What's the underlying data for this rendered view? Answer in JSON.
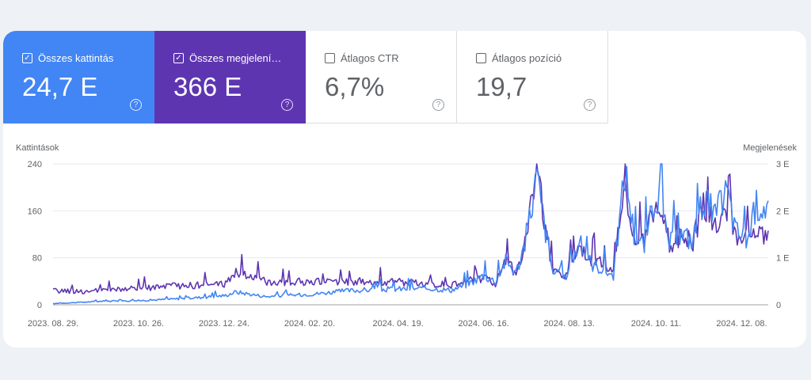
{
  "metrics": [
    {
      "label": "Összes kattintás",
      "value": "24,7 E",
      "checked": true,
      "help": "?"
    },
    {
      "label": "Összes megjelení…",
      "value": "366 E",
      "checked": true,
      "help": "?"
    },
    {
      "label": "Átlagos CTR",
      "value": "6,7%",
      "checked": false,
      "help": "?"
    },
    {
      "label": "Átlagos pozíció",
      "value": "19,7",
      "checked": false,
      "help": "?"
    }
  ],
  "colors": {
    "clicks": "#4285f4",
    "impressions": "#5e35b1"
  },
  "chart_data": {
    "type": "line",
    "ylabel": "Kattintások",
    "y2label": "Megjelenések",
    "y_ticks": [
      "0",
      "80",
      "160",
      "240"
    ],
    "y2_ticks": [
      "0",
      "1 E",
      "2 E",
      "3 E"
    ],
    "ylim": [
      0,
      240
    ],
    "y2lim": [
      0,
      3000
    ],
    "x_ticks": [
      "2023. 08. 29.",
      "2023. 10. 26.",
      "2023. 12. 24.",
      "2024. 02. 20.",
      "2024. 04. 19.",
      "2024. 06. 16.",
      "2024. 08. 13.",
      "2024. 10. 11.",
      "2024. 12. 08."
    ],
    "x_range": [
      "2023-08-29",
      "2024-12-26"
    ],
    "grid": true,
    "series": [
      {
        "axis": "left",
        "color": "#4285f4",
        "points": [
          [
            "2023-08-29",
            2
          ],
          [
            "2023-09-15",
            4
          ],
          [
            "2023-10-01",
            6
          ],
          [
            "2023-10-26",
            7
          ],
          [
            "2023-11-20",
            10
          ],
          [
            "2023-12-10",
            13
          ],
          [
            "2023-12-24",
            16
          ],
          [
            "2023-12-31",
            22
          ],
          [
            "2024-01-20",
            14
          ],
          [
            "2024-02-20",
            18
          ],
          [
            "2024-03-15",
            24
          ],
          [
            "2024-04-19",
            27
          ],
          [
            "2024-05-10",
            28
          ],
          [
            "2024-05-25",
            25
          ],
          [
            "2024-06-05",
            35
          ],
          [
            "2024-06-16",
            50
          ],
          [
            "2024-06-24",
            40
          ],
          [
            "2024-07-01",
            75
          ],
          [
            "2024-07-08",
            55
          ],
          [
            "2024-07-14",
            105
          ],
          [
            "2024-07-22",
            220
          ],
          [
            "2024-07-27",
            140
          ],
          [
            "2024-08-02",
            55
          ],
          [
            "2024-08-10",
            45
          ],
          [
            "2024-08-20",
            105
          ],
          [
            "2024-08-28",
            70
          ],
          [
            "2024-09-05",
            60
          ],
          [
            "2024-09-12",
            50
          ],
          [
            "2024-09-20",
            230
          ],
          [
            "2024-09-26",
            120
          ],
          [
            "2024-10-03",
            100
          ],
          [
            "2024-10-11",
            190
          ],
          [
            "2024-10-20",
            105
          ],
          [
            "2024-10-28",
            120
          ],
          [
            "2024-11-05",
            110
          ],
          [
            "2024-11-12",
            185
          ],
          [
            "2024-11-20",
            150
          ],
          [
            "2024-11-28",
            195
          ],
          [
            "2024-12-04",
            125
          ],
          [
            "2024-12-12",
            110
          ],
          [
            "2024-12-18",
            170
          ],
          [
            "2024-12-26",
            168
          ]
        ]
      },
      {
        "axis": "right",
        "color": "#5e35b1",
        "points": [
          [
            "2023-08-29",
            300
          ],
          [
            "2023-09-20",
            280
          ],
          [
            "2023-10-26",
            350
          ],
          [
            "2023-11-20",
            400
          ],
          [
            "2023-12-10",
            420
          ],
          [
            "2023-12-24",
            450
          ],
          [
            "2023-12-31",
            700
          ],
          [
            "2024-01-20",
            500
          ],
          [
            "2024-02-20",
            480
          ],
          [
            "2024-03-15",
            500
          ],
          [
            "2024-04-19",
            480
          ],
          [
            "2024-05-10",
            450
          ],
          [
            "2024-05-25",
            420
          ],
          [
            "2024-06-05",
            500
          ],
          [
            "2024-06-16",
            580
          ],
          [
            "2024-06-24",
            450
          ],
          [
            "2024-07-01",
            900
          ],
          [
            "2024-07-08",
            700
          ],
          [
            "2024-07-14",
            1300
          ],
          [
            "2024-07-22",
            2820
          ],
          [
            "2024-07-27",
            1800
          ],
          [
            "2024-08-02",
            750
          ],
          [
            "2024-08-10",
            650
          ],
          [
            "2024-08-20",
            1250
          ],
          [
            "2024-08-28",
            950
          ],
          [
            "2024-09-05",
            850
          ],
          [
            "2024-09-12",
            700
          ],
          [
            "2024-09-20",
            2700
          ],
          [
            "2024-09-26",
            1450
          ],
          [
            "2024-10-03",
            1300
          ],
          [
            "2024-10-11",
            2150
          ],
          [
            "2024-10-20",
            1300
          ],
          [
            "2024-10-28",
            1450
          ],
          [
            "2024-11-05",
            1350
          ],
          [
            "2024-11-12",
            2100
          ],
          [
            "2024-11-20",
            1700
          ],
          [
            "2024-11-28",
            2150
          ],
          [
            "2024-12-04",
            1500
          ],
          [
            "2024-12-12",
            1350
          ],
          [
            "2024-12-18",
            1500
          ],
          [
            "2024-12-26",
            1600
          ]
        ]
      }
    ]
  }
}
